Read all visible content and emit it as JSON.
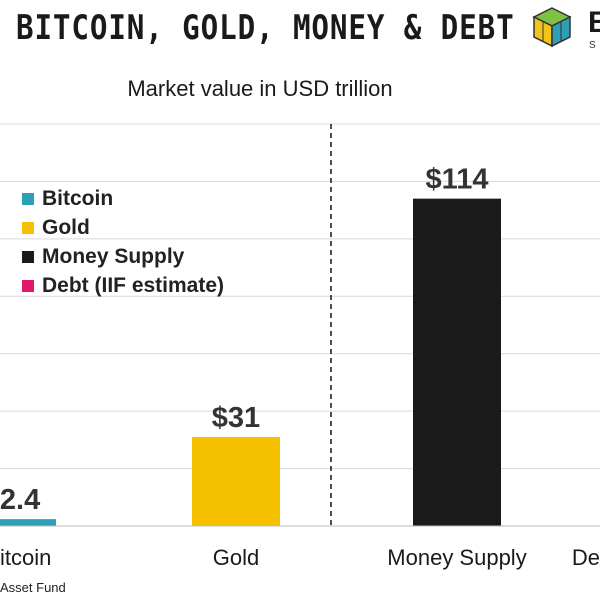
{
  "header": {
    "title": "BITCOIN, GOLD, MONEY & DEBT",
    "subtitle": "Market value in USD trillion",
    "logo_letter": "B",
    "logo_sub": "S"
  },
  "chart_data": {
    "type": "bar",
    "categories": [
      "Bitcoin",
      "Gold",
      "Money Supply",
      "Debt"
    ],
    "category_labels_visible": [
      "itcoin",
      "Gold",
      "Money Supply",
      "De"
    ],
    "values": [
      2.4,
      31,
      114,
      null
    ],
    "value_labels": [
      "$2.4",
      "$31",
      "$114",
      ""
    ],
    "colors": [
      "#2e9fb5",
      "#f5c000",
      "#1a1a1a",
      "#e0186c"
    ],
    "ylim": [
      0,
      140
    ],
    "grid": true,
    "legend": {
      "placement": "top-left",
      "entries": [
        {
          "label": "Bitcoin",
          "color": "#2e9fb5"
        },
        {
          "label": "Gold",
          "color": "#f5c000"
        },
        {
          "label": "Money Supply",
          "color": "#1a1a1a"
        },
        {
          "label": "Debt (IIF estimate)",
          "color": "#e0186c"
        }
      ]
    }
  },
  "footer": {
    "source": "Asset Fund"
  }
}
